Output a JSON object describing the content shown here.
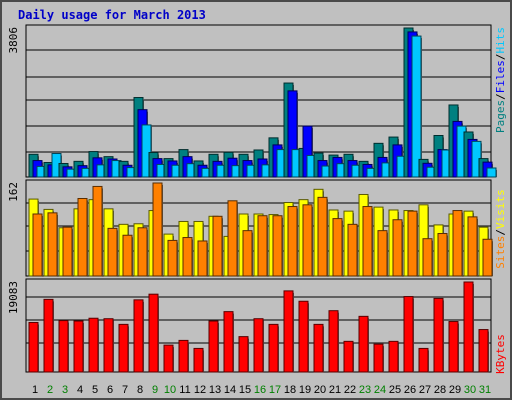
{
  "title": "Daily usage for March 2013",
  "colors": {
    "hits": "#00c8ff",
    "files": "#0000ff",
    "pages": "#008080",
    "visits": "#ffff00",
    "sites": "#ff8000",
    "kbytes": "#ff0000",
    "weekend": "#008000",
    "weekday": "#000000"
  },
  "chart_data": [
    {
      "type": "bar",
      "panel": "top",
      "ymax_label": "3806",
      "ylim": [
        0,
        3806
      ],
      "legend": [
        "Pages",
        "/",
        "Files",
        "/",
        "Hits"
      ],
      "categories": [
        "1",
        "2",
        "3",
        "4",
        "5",
        "6",
        "7",
        "8",
        "9",
        "10",
        "11",
        "12",
        "13",
        "14",
        "15",
        "16",
        "17",
        "18",
        "19",
        "20",
        "21",
        "22",
        "23",
        "24",
        "25",
        "26",
        "27",
        "28",
        "29",
        "30",
        "31"
      ],
      "weekend": [
        false,
        true,
        true,
        false,
        false,
        false,
        false,
        false,
        true,
        true,
        false,
        false,
        false,
        false,
        false,
        true,
        true,
        false,
        false,
        false,
        false,
        false,
        true,
        true,
        false,
        false,
        false,
        false,
        false,
        true,
        true
      ],
      "series": [
        {
          "name": "Pages",
          "values": [
            580,
            370,
            345,
            400,
            650,
            520,
            400,
            2030,
            625,
            470,
            700,
            410,
            580,
            630,
            580,
            690,
            1000,
            2400,
            730,
            610,
            560,
            580,
            400,
            860,
            1020,
            3806,
            450,
            1060,
            1840,
            1150,
            470
          ]
        },
        {
          "name": "Files",
          "values": [
            420,
            310,
            260,
            290,
            490,
            460,
            300,
            1720,
            470,
            410,
            520,
            300,
            400,
            480,
            420,
            460,
            820,
            2200,
            1300,
            420,
            500,
            420,
            320,
            500,
            820,
            3706,
            350,
            700,
            1420,
            960,
            380
          ]
        },
        {
          "name": "Hits",
          "values": [
            270,
            600,
            200,
            220,
            310,
            420,
            240,
            1330,
            320,
            300,
            340,
            220,
            300,
            290,
            300,
            310,
            700,
            700,
            550,
            280,
            340,
            300,
            220,
            360,
            530,
            3600,
            250,
            690,
            1300,
            910,
            230
          ]
        }
      ]
    },
    {
      "type": "bar",
      "panel": "middle",
      "ymax_label": "162",
      "ylim": [
        0,
        162
      ],
      "legend": [
        "Sites",
        "/",
        "Visits"
      ],
      "categories": [
        "1",
        "2",
        "3",
        "4",
        "5",
        "6",
        "7",
        "8",
        "9",
        "10",
        "11",
        "12",
        "13",
        "14",
        "15",
        "16",
        "17",
        "18",
        "19",
        "20",
        "21",
        "22",
        "23",
        "24",
        "25",
        "26",
        "27",
        "28",
        "29",
        "30",
        "31"
      ],
      "series": [
        {
          "name": "Visits",
          "values": [
            134,
            116,
            84,
            117,
            133,
            117,
            90,
            91,
            114,
            73,
            95,
            95,
            104,
            69,
            108,
            108,
            107,
            128,
            133,
            151,
            115,
            113,
            142,
            120,
            115,
            114,
            124,
            89,
            108,
            113,
            85
          ]
        },
        {
          "name": "Sites",
          "values": [
            108,
            110,
            85,
            135,
            156,
            83,
            71,
            84,
            162,
            62,
            67,
            61,
            104,
            131,
            79,
            105,
            105,
            121,
            124,
            137,
            100,
            90,
            121,
            79,
            98,
            113,
            65,
            74,
            114,
            103,
            64
          ]
        }
      ]
    },
    {
      "type": "bar",
      "panel": "bottom",
      "ymax_label": "19083",
      "ylim": [
        0,
        19083
      ],
      "legend": [
        "KBytes"
      ],
      "categories": [
        "1",
        "2",
        "3",
        "4",
        "5",
        "6",
        "7",
        "8",
        "9",
        "10",
        "11",
        "12",
        "13",
        "14",
        "15",
        "16",
        "17",
        "18",
        "19",
        "20",
        "21",
        "22",
        "23",
        "24",
        "25",
        "26",
        "27",
        "28",
        "29",
        "30",
        "31"
      ],
      "series": [
        {
          "name": "KBytes",
          "values": [
            10500,
            15400,
            10900,
            10800,
            11400,
            11300,
            10100,
            15300,
            16500,
            5700,
            6700,
            5000,
            10800,
            12800,
            7500,
            11300,
            10100,
            17200,
            15000,
            10100,
            13000,
            6500,
            11800,
            5900,
            6500,
            16000,
            5000,
            15600,
            10700,
            19083,
            9000
          ]
        }
      ]
    }
  ]
}
